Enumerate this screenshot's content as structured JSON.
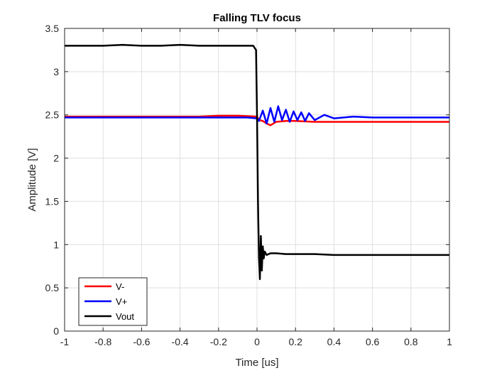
{
  "chart_data": {
    "type": "line",
    "title": "Falling TLV focus",
    "xlabel": "Time [us]",
    "ylabel": "Amplitude [V]",
    "xlim": [
      -1,
      1
    ],
    "ylim": [
      0,
      3.5
    ],
    "xticks": [
      -1,
      -0.8,
      -0.6,
      -0.4,
      -0.2,
      0,
      0.2,
      0.4,
      0.6,
      0.8,
      1
    ],
    "xtick_labels": [
      "-1",
      "-0.8",
      "-0.6",
      "-0.4",
      "-0.2",
      "0",
      "0.2",
      "0.4",
      "0.6",
      "0.8",
      "1"
    ],
    "yticks": [
      0,
      0.5,
      1,
      1.5,
      2,
      2.5,
      3,
      3.5
    ],
    "ytick_labels": [
      "0",
      "0.5",
      "1",
      "1.5",
      "2",
      "2.5",
      "3",
      "3.5"
    ],
    "grid": true,
    "legend_position": "bottom-left",
    "series": [
      {
        "name": "V-",
        "color": "#ff0000",
        "x": [
          -1,
          -0.8,
          -0.6,
          -0.4,
          -0.3,
          -0.2,
          -0.1,
          0,
          0.01,
          0.03,
          0.05,
          0.07,
          0.1,
          0.15,
          0.2,
          0.3,
          0.4,
          0.5,
          0.6,
          0.8,
          1
        ],
        "y": [
          2.48,
          2.48,
          2.48,
          2.48,
          2.48,
          2.49,
          2.49,
          2.48,
          2.44,
          2.43,
          2.4,
          2.38,
          2.42,
          2.43,
          2.43,
          2.42,
          2.42,
          2.42,
          2.42,
          2.42,
          2.42
        ]
      },
      {
        "name": "V+",
        "color": "#0000ff",
        "x": [
          -1,
          -0.8,
          -0.6,
          -0.4,
          -0.2,
          -0.05,
          0,
          0.01,
          0.03,
          0.05,
          0.07,
          0.09,
          0.11,
          0.13,
          0.15,
          0.17,
          0.19,
          0.21,
          0.23,
          0.25,
          0.27,
          0.3,
          0.35,
          0.4,
          0.5,
          0.6,
          0.7,
          0.8,
          1
        ],
        "y": [
          2.47,
          2.47,
          2.47,
          2.47,
          2.47,
          2.47,
          2.46,
          2.43,
          2.55,
          2.4,
          2.58,
          2.42,
          2.6,
          2.44,
          2.56,
          2.42,
          2.54,
          2.44,
          2.53,
          2.43,
          2.52,
          2.44,
          2.5,
          2.46,
          2.48,
          2.47,
          2.47,
          2.47,
          2.47
        ]
      },
      {
        "name": "Vout",
        "color": "#000000",
        "x": [
          -1,
          -0.9,
          -0.8,
          -0.7,
          -0.6,
          -0.5,
          -0.4,
          -0.3,
          -0.2,
          -0.1,
          -0.02,
          -0.005,
          0,
          0.005,
          0.01,
          0.015,
          0.02,
          0.025,
          0.03,
          0.035,
          0.04,
          0.05,
          0.07,
          0.1,
          0.15,
          0.2,
          0.3,
          0.4,
          0.5,
          0.6,
          0.7,
          0.8,
          0.9,
          1
        ],
        "y": [
          3.3,
          3.3,
          3.3,
          3.31,
          3.3,
          3.3,
          3.31,
          3.3,
          3.3,
          3.3,
          3.3,
          3.25,
          2.5,
          1.5,
          0.85,
          0.6,
          1.1,
          0.7,
          0.98,
          0.84,
          0.92,
          0.88,
          0.9,
          0.9,
          0.89,
          0.89,
          0.89,
          0.88,
          0.88,
          0.88,
          0.88,
          0.88,
          0.88,
          0.88
        ]
      }
    ]
  }
}
